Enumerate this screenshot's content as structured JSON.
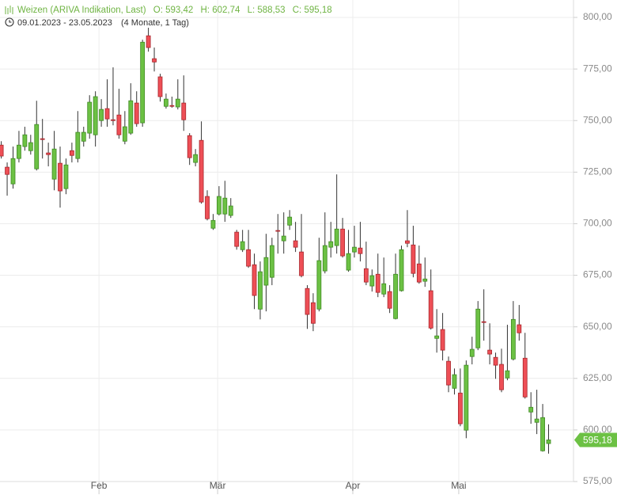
{
  "header": {
    "instrument": "Weizen (ARIVA Indikation, Last)",
    "ohlc": [
      "O: 593,42",
      "H: 602,74",
      "L: 588,53",
      "C: 595,18"
    ],
    "date_range": "09.01.2023 - 23.05.2023",
    "duration": "(4 Monate, 1 Tag)"
  },
  "chart_data": {
    "type": "candlestick",
    "open": [
      738.1,
      727.4,
      719.3,
      731.6,
      737.4,
      735.4,
      726.6,
      741.2,
      734.3,
      721.6,
      729.3,
      717.0,
      735.4,
      731.6,
      740.0,
      743.9,
      743.1,
      750.0,
      755.8,
      750.4,
      752.7,
      740.0,
      743.9,
      758.5,
      748.9,
      791.1,
      780.0,
      771.2,
      756.9,
      757.3,
      756.6,
      758.5,
      742.7,
      729.7,
      740.4,
      713.2,
      697.8,
      704.7,
      704.7,
      704.0,
      695.9,
      687.4,
      687.4,
      680.1,
      658.6,
      670.2,
      674.0,
      696.7,
      691.7,
      699.3,
      691.7,
      686.3,
      668.6,
      661.7,
      658.6,
      677.1,
      688.6,
      689.4,
      697.4,
      677.5,
      686.3,
      688.2,
      678.2,
      669.8,
      675.5,
      665.9,
      667.1,
      654.0,
      667.5,
      691.7,
      689.7,
      680.5,
      672.1,
      667.5,
      644.4,
      648.7,
      633.3,
      620.2,
      617.9,
      599.9,
      635.6,
      639.8,
      652.5,
      638.7,
      635.2,
      631.8,
      625.2,
      634.4,
      651.0,
      634.8,
      608.7,
      603.7,
      589.9,
      593.42
    ],
    "high": [
      740.0,
      729.7,
      737.4,
      745.0,
      747.0,
      743.1,
      759.6,
      750.8,
      739.3,
      745.0,
      737.4,
      731.6,
      739.3,
      754.6,
      747.0,
      762.3,
      764.2,
      760.4,
      770.0,
      775.8,
      765.4,
      754.6,
      768.1,
      764.2,
      789.2,
      795.0,
      785.4,
      772.7,
      763.1,
      761.6,
      770.0,
      771.9,
      743.9,
      736.2,
      749.6,
      716.2,
      704.7,
      718.2,
      720.8,
      712.4,
      697.0,
      697.0,
      697.0,
      685.5,
      681.7,
      695.1,
      693.2,
      704.7,
      705.5,
      706.6,
      700.9,
      704.7,
      670.2,
      666.3,
      693.2,
      705.5,
      700.9,
      723.9,
      702.8,
      697.0,
      699.0,
      700.9,
      691.3,
      677.8,
      685.5,
      683.6,
      670.2,
      685.5,
      689.4,
      706.6,
      699.0,
      689.4,
      683.6,
      677.8,
      658.6,
      656.7,
      635.6,
      629.8,
      629.8,
      633.7,
      645.2,
      662.5,
      668.2,
      651.7,
      637.5,
      639.4,
      651.0,
      662.5,
      660.6,
      647.1,
      618.3,
      619.5,
      612.6,
      602.74
    ],
    "low": [
      731.6,
      713.6,
      717.0,
      729.7,
      735.4,
      733.5,
      725.8,
      731.6,
      727.8,
      716.2,
      707.8,
      714.3,
      729.7,
      729.7,
      737.4,
      741.2,
      737.4,
      747.0,
      747.0,
      747.7,
      741.2,
      738.5,
      743.1,
      747.0,
      747.0,
      783.4,
      773.8,
      759.2,
      755.8,
      756.2,
      755.4,
      745.0,
      728.5,
      727.8,
      709.7,
      701.6,
      697.0,
      704.0,
      700.9,
      702.8,
      687.4,
      686.3,
      678.6,
      658.6,
      653.6,
      657.5,
      670.2,
      685.5,
      685.5,
      697.0,
      686.3,
      674.0,
      649.0,
      647.9,
      657.5,
      675.9,
      683.6,
      685.5,
      683.6,
      676.7,
      683.6,
      681.7,
      670.2,
      667.1,
      664.4,
      664.4,
      656.7,
      653.6,
      667.1,
      688.6,
      674.0,
      670.9,
      669.4,
      648.7,
      637.5,
      633.7,
      618.3,
      617.2,
      601.8,
      596.0,
      631.8,
      638.7,
      643.3,
      631.8,
      624.8,
      618.3,
      624.1,
      633.7,
      643.3,
      615.2,
      603.0,
      598.0,
      589.5,
      588.53
    ],
    "close": [
      732.8,
      723.9,
      731.6,
      738.1,
      743.1,
      739.3,
      748.1,
      741.0,
      733.5,
      736.2,
      715.9,
      728.5,
      733.1,
      744.3,
      744.3,
      758.9,
      761.6,
      755.4,
      750.8,
      750.2,
      743.1,
      747.0,
      759.6,
      748.5,
      788.0,
      785.4,
      778.4,
      761.6,
      760.4,
      756.9,
      760.4,
      750.4,
      732.0,
      733.5,
      710.5,
      702.4,
      701.6,
      713.2,
      712.4,
      708.6,
      689.0,
      691.3,
      679.4,
      665.2,
      676.7,
      683.6,
      689.4,
      696.5,
      694.0,
      703.2,
      688.6,
      674.8,
      656.0,
      651.7,
      682.1,
      689.4,
      691.3,
      697.4,
      684.4,
      685.5,
      688.6,
      685.5,
      671.7,
      674.8,
      666.7,
      670.9,
      659.0,
      675.5,
      687.4,
      690.5,
      675.9,
      671.7,
      673.2,
      649.4,
      645.6,
      638.7,
      621.8,
      626.8,
      603.0,
      631.4,
      639.1,
      658.6,
      652.3,
      636.8,
      631.4,
      619.5,
      628.7,
      653.6,
      647.1,
      616.0,
      611.0,
      605.3,
      606.0,
      595.18
    ],
    "up_color": "#6cc144",
    "down_color": "#ee4f56",
    "last_label": "595,18",
    "xlim": [
      -0.15,
      97.3
    ],
    "xticks": [
      {
        "value": 16.67,
        "label": "Feb"
      },
      {
        "value": 36.83,
        "label": "Mär"
      },
      {
        "value": 59.8,
        "label": "Apr"
      },
      {
        "value": 77.8,
        "label": "Mai"
      }
    ],
    "ylim": [
      575,
      808.45
    ],
    "yticks": [
      {
        "value": 575,
        "label": "575,00"
      },
      {
        "value": 600,
        "label": "600,00"
      },
      {
        "value": 625,
        "label": "625,00"
      },
      {
        "value": 650,
        "label": "650,00"
      },
      {
        "value": 675,
        "label": "675,00"
      },
      {
        "value": 700,
        "label": "700,00"
      },
      {
        "value": 725,
        "label": "725,00"
      },
      {
        "value": 750,
        "label": "750,00"
      },
      {
        "value": 775,
        "label": "775,00"
      },
      {
        "value": 800,
        "label": "800,00"
      }
    ],
    "grid": true
  }
}
